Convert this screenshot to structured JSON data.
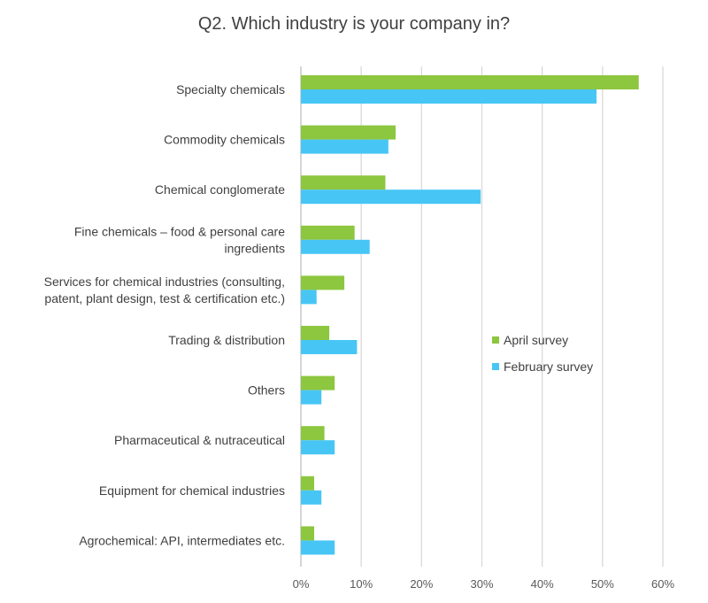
{
  "chart_data": {
    "type": "bar",
    "orientation": "horizontal",
    "title": "Q2. Which industry is your company in?",
    "categories": [
      [
        "Specialty chemicals"
      ],
      [
        "Commodity chemicals"
      ],
      [
        "Chemical conglomerate"
      ],
      [
        "Fine chemicals – food & personal care",
        "ingredients"
      ],
      [
        "Services for chemical industries (consulting,",
        "patent, plant design, test & certification etc.)"
      ],
      [
        "Trading & distribution"
      ],
      [
        "Others"
      ],
      [
        "Pharmaceutical & nutraceutical"
      ],
      [
        "Equipment for chemical industries"
      ],
      [
        "Agrochemical: API, intermediates etc."
      ]
    ],
    "series": [
      {
        "name": "April survey",
        "color": "#8DC63F",
        "values": [
          56,
          15.7,
          14,
          8.9,
          7.2,
          4.7,
          5.6,
          3.9,
          2.2,
          2.2
        ]
      },
      {
        "name": "February survey",
        "color": "#47C6F5",
        "values": [
          49,
          14.5,
          29.8,
          11.4,
          2.6,
          9.3,
          3.4,
          5.6,
          3.4,
          5.6
        ]
      }
    ],
    "x_ticks": [
      "0%",
      "10%",
      "20%",
      "30%",
      "40%",
      "50%",
      "60%"
    ],
    "xlim": [
      0,
      60
    ],
    "grid": true,
    "legend_position": "right-middle"
  }
}
